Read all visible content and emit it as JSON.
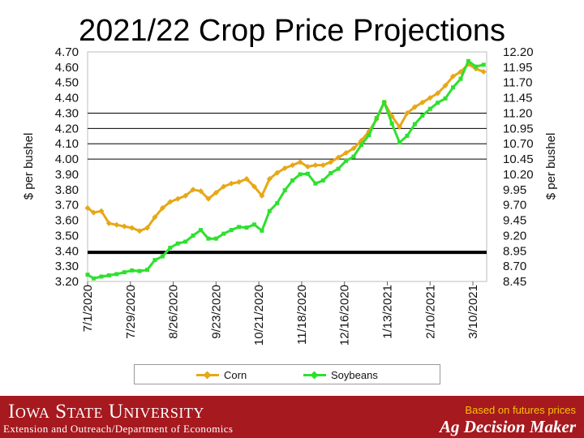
{
  "slide": {
    "title": "2021/22 Crop Price Projections",
    "footer_logo": "Iowa State University",
    "footer_subtitle": "Extension and Outreach/Department of Economics",
    "footer_note": "Based on futures prices",
    "footer_brand": "Ag Decision Maker"
  },
  "colors": {
    "corn": "#e6a817",
    "soybeans": "#2ee02e",
    "reference": "#000000",
    "footer": "#a6191e",
    "note": "#f5c400"
  },
  "chart_data": {
    "type": "line",
    "title": "2021/22 Crop Price Projections",
    "ylabel": "$ per bushel",
    "y2label": "$ per bushel",
    "ylim": [
      3.2,
      4.7
    ],
    "y2lim": [
      8.45,
      12.2
    ],
    "yticks": [
      "4.70",
      "4.60",
      "4.50",
      "4.40",
      "4.30",
      "4.20",
      "4.10",
      "4.00",
      "3.90",
      "3.80",
      "3.70",
      "3.60",
      "3.50",
      "3.40",
      "3.30",
      "3.20"
    ],
    "y2ticks": [
      "12.20",
      "11.95",
      "11.70",
      "11.45",
      "11.20",
      "10.95",
      "10.70",
      "10.45",
      "10.20",
      "9.95",
      "9.70",
      "9.45",
      "9.20",
      "8.95",
      "8.70",
      "8.45"
    ],
    "xticks": [
      "7/1/2020",
      "7/29/2020",
      "8/26/2020",
      "9/23/2020",
      "10/21/2020",
      "11/18/2020",
      "12/16/2020",
      "1/13/2021",
      "2/10/2021",
      "3/10/2021"
    ],
    "x_start": "7/1/2020",
    "x_end": "3/19/2021",
    "gridlines_y": [
      4.3,
      4.2,
      4.1,
      4.0
    ],
    "reference_line": {
      "value": 3.39,
      "axis": "left"
    },
    "legend_position": "bottom",
    "series": [
      {
        "name": "Corn",
        "axis": "left",
        "color": "#e6a817",
        "x": [
          "7/1/2020",
          "7/5/2020",
          "7/10/2020",
          "7/15/2020",
          "7/20/2020",
          "7/25/2020",
          "7/30/2020",
          "8/4/2020",
          "8/9/2020",
          "8/14/2020",
          "8/19/2020",
          "8/24/2020",
          "8/29/2020",
          "9/3/2020",
          "9/8/2020",
          "9/13/2020",
          "9/18/2020",
          "9/23/2020",
          "9/28/2020",
          "10/3/2020",
          "10/8/2020",
          "10/13/2020",
          "10/18/2020",
          "10/23/2020",
          "10/28/2020",
          "11/2/2020",
          "11/7/2020",
          "11/12/2020",
          "11/17/2020",
          "11/22/2020",
          "11/27/2020",
          "12/2/2020",
          "12/7/2020",
          "12/12/2020",
          "12/17/2020",
          "12/22/2020",
          "12/27/2020",
          "1/1/2021",
          "1/6/2021",
          "1/11/2021",
          "1/16/2021",
          "1/21/2021",
          "1/26/2021",
          "1/31/2021",
          "2/5/2021",
          "2/10/2021",
          "2/15/2021",
          "2/20/2021",
          "2/25/2021",
          "3/2/2021",
          "3/7/2021",
          "3/12/2021",
          "3/17/2021"
        ],
        "y": [
          3.68,
          3.65,
          3.66,
          3.58,
          3.57,
          3.56,
          3.55,
          3.53,
          3.55,
          3.62,
          3.68,
          3.72,
          3.74,
          3.76,
          3.8,
          3.79,
          3.74,
          3.78,
          3.82,
          3.84,
          3.85,
          3.87,
          3.82,
          3.76,
          3.87,
          3.91,
          3.94,
          3.96,
          3.98,
          3.95,
          3.96,
          3.96,
          3.98,
          4.01,
          4.04,
          4.07,
          4.12,
          4.18,
          4.26,
          4.37,
          4.28,
          4.21,
          4.3,
          4.34,
          4.37,
          4.4,
          4.43,
          4.48,
          4.54,
          4.57,
          4.62,
          4.59,
          4.57
        ]
      },
      {
        "name": "Soybeans",
        "axis": "right",
        "color": "#2ee02e",
        "x": [
          "7/1/2020",
          "7/5/2020",
          "7/10/2020",
          "7/15/2020",
          "7/20/2020",
          "7/25/2020",
          "7/30/2020",
          "8/4/2020",
          "8/9/2020",
          "8/14/2020",
          "8/19/2020",
          "8/24/2020",
          "8/29/2020",
          "9/3/2020",
          "9/8/2020",
          "9/13/2020",
          "9/18/2020",
          "9/23/2020",
          "9/28/2020",
          "10/3/2020",
          "10/8/2020",
          "10/13/2020",
          "10/18/2020",
          "10/23/2020",
          "10/28/2020",
          "11/2/2020",
          "11/7/2020",
          "11/12/2020",
          "11/17/2020",
          "11/22/2020",
          "11/27/2020",
          "12/2/2020",
          "12/7/2020",
          "12/12/2020",
          "12/17/2020",
          "12/22/2020",
          "12/27/2020",
          "1/1/2021",
          "1/6/2021",
          "1/11/2021",
          "1/16/2021",
          "1/21/2021",
          "1/26/2021",
          "1/31/2021",
          "2/5/2021",
          "2/10/2021",
          "2/15/2021",
          "2/20/2021",
          "2/25/2021",
          "3/2/2021",
          "3/7/2021",
          "3/12/2021",
          "3/17/2021"
        ],
        "y": [
          8.56,
          8.5,
          8.53,
          8.55,
          8.57,
          8.6,
          8.63,
          8.62,
          8.64,
          8.8,
          8.86,
          9.0,
          9.07,
          9.1,
          9.2,
          9.29,
          9.15,
          9.15,
          9.23,
          9.29,
          9.34,
          9.33,
          9.38,
          9.28,
          9.6,
          9.73,
          9.94,
          10.1,
          10.2,
          10.21,
          10.05,
          10.1,
          10.22,
          10.29,
          10.42,
          10.49,
          10.68,
          10.84,
          11.12,
          11.38,
          11.03,
          10.72,
          10.83,
          11.02,
          11.16,
          11.27,
          11.37,
          11.44,
          11.62,
          11.76,
          12.05,
          11.96,
          11.99
        ]
      }
    ]
  }
}
